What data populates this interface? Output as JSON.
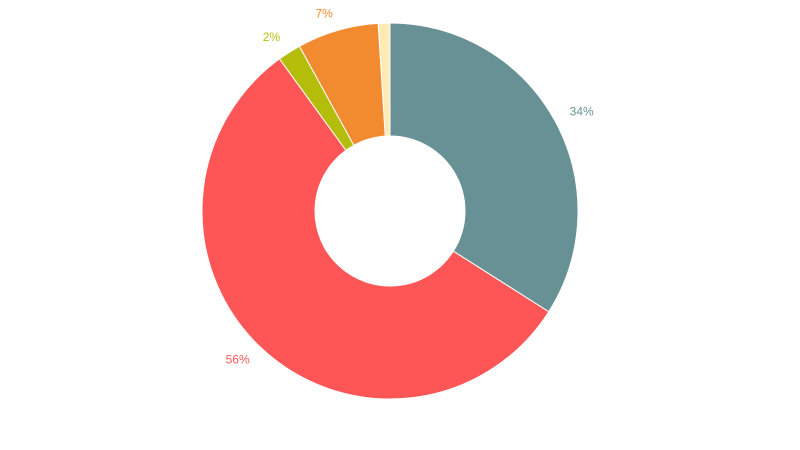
{
  "chart_data": {
    "type": "donut",
    "values": [
      34,
      56,
      2,
      7,
      1
    ],
    "value_labels": [
      "34%",
      "56%",
      "2%",
      "7%",
      null
    ],
    "colors": [
      "#679194",
      "#fe5656",
      "#b5bd0b",
      "#f28a30",
      "#fdeab5"
    ]
  }
}
